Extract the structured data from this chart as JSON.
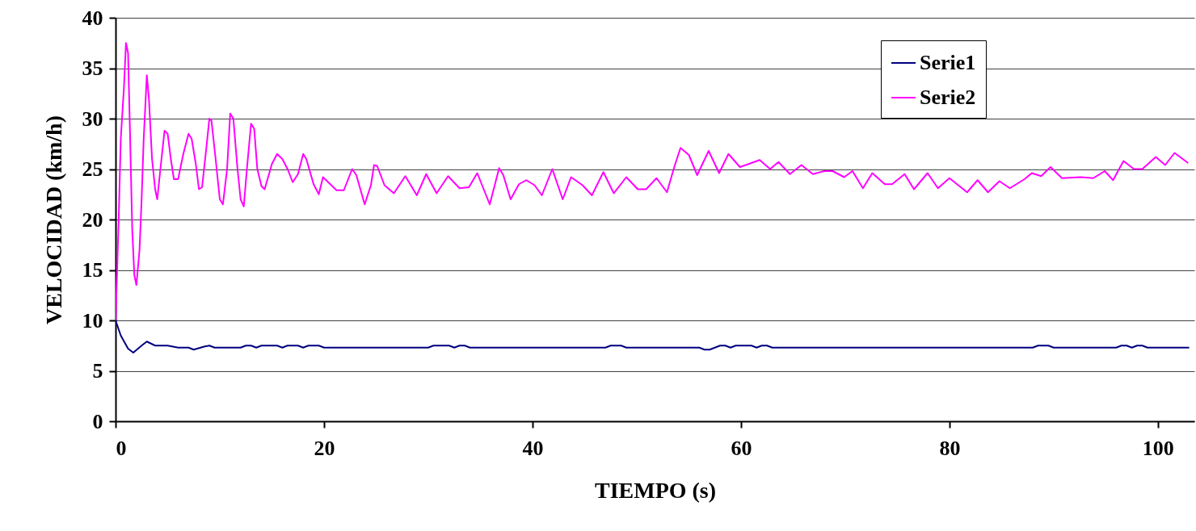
{
  "chart_data": {
    "type": "line",
    "xlabel": "TIEMPO (s)",
    "ylabel": "VELOCIDAD (km/h)",
    "xlim": [
      0,
      103.5
    ],
    "xticks": [
      0,
      20,
      40,
      60,
      80,
      100
    ],
    "ylim": [
      0,
      40
    ],
    "yticks": [
      0,
      5,
      10,
      15,
      20,
      25,
      30,
      35,
      40
    ],
    "grid": "y",
    "legend": "top right",
    "series": [
      {
        "name": "Serie1",
        "color": "#000080",
        "x": [
          0,
          0.5,
          1.2,
          1.7,
          2.5,
          3.0,
          3.8,
          5,
          6,
          7,
          7.5,
          8.5,
          9,
          9.5,
          12,
          12.5,
          13,
          13.5,
          14,
          14.5,
          15.5,
          16,
          16.5,
          17.5,
          18,
          18.5,
          19,
          19.5,
          20,
          30,
          30.5,
          32,
          32.5,
          33,
          33.5,
          34,
          47,
          47.5,
          48.5,
          49,
          56,
          56.5,
          57,
          57.5,
          58,
          58.5,
          59,
          59.5,
          61,
          61.5,
          62,
          62.5,
          63,
          88,
          88.5,
          89.5,
          90,
          96,
          96.5,
          97,
          97.5,
          98,
          98.5,
          99,
          103
        ],
        "values": [
          10,
          8.5,
          7.2,
          6.8,
          7.5,
          7.9,
          7.5,
          7.5,
          7.3,
          7.3,
          7.1,
          7.4,
          7.5,
          7.3,
          7.3,
          7.5,
          7.5,
          7.3,
          7.5,
          7.5,
          7.5,
          7.3,
          7.5,
          7.5,
          7.3,
          7.5,
          7.5,
          7.5,
          7.3,
          7.3,
          7.5,
          7.5,
          7.3,
          7.5,
          7.5,
          7.3,
          7.3,
          7.5,
          7.5,
          7.3,
          7.3,
          7.1,
          7.1,
          7.3,
          7.5,
          7.5,
          7.3,
          7.5,
          7.5,
          7.3,
          7.5,
          7.5,
          7.3,
          7.3,
          7.5,
          7.5,
          7.3,
          7.3,
          7.5,
          7.5,
          7.3,
          7.5,
          7.5,
          7.3,
          7.3
        ]
      },
      {
        "name": "Serie2",
        "color": "#ff00ff",
        "x": [
          0,
          0.3,
          0.5,
          0.8,
          1.0,
          1.2,
          1.4,
          1.6,
          1.8,
          2.0,
          2.3,
          2.5,
          2.7,
          3.0,
          3.2,
          3.5,
          3.8,
          4.0,
          4.3,
          4.7,
          5.0,
          5.3,
          5.6,
          6.0,
          6.5,
          7.0,
          7.3,
          7.7,
          8.0,
          8.3,
          8.7,
          9.0,
          9.2,
          9.6,
          10.0,
          10.3,
          10.7,
          11.0,
          11.3,
          11.7,
          12.0,
          12.3,
          12.6,
          13.0,
          13.3,
          13.6,
          14.0,
          14.3,
          15.0,
          15.5,
          16.0,
          16.5,
          17.0,
          17.5,
          18.0,
          18.3,
          19.0,
          19.5,
          19.9,
          21.2,
          21.9,
          22.7,
          23.1,
          23.9,
          24.5,
          24.8,
          25.1,
          25.8,
          26.7,
          27.8,
          28.9,
          29.8,
          30.8,
          31.9,
          33.0,
          33.9,
          34.7,
          35.9,
          36.8,
          37.2,
          37.9,
          38.7,
          39.4,
          40.2,
          40.9,
          41.9,
          42.9,
          43.7,
          44.8,
          45.7,
          46.8,
          47.8,
          49.0,
          50.1,
          50.9,
          51.9,
          52.9,
          53.6,
          54.2,
          55.0,
          55.8,
          56.9,
          57.9,
          58.8,
          59.9,
          61.0,
          61.8,
          62.8,
          63.6,
          64.7,
          65.8,
          66.9,
          68.0,
          68.8,
          69.9,
          70.7,
          71.7,
          72.6,
          73.8,
          74.5,
          75.7,
          76.6,
          77.9,
          78.9,
          80.0,
          81.7,
          82.7,
          83.7,
          84.8,
          85.8,
          87.2,
          87.9,
          88.8,
          89.7,
          90.8,
          92.6,
          93.8,
          94.9,
          95.7,
          96.7,
          97.7,
          98.5,
          99.8,
          100.7,
          101.6,
          102.9
        ],
        "values": [
          10,
          20,
          28,
          33,
          37.5,
          36.5,
          28,
          19,
          14.5,
          13.5,
          17,
          22,
          28,
          34.3,
          32,
          26,
          23,
          22,
          25,
          28.8,
          28.5,
          26,
          24,
          24,
          26.5,
          28.5,
          28,
          25.5,
          23,
          23.2,
          27,
          30,
          29.8,
          26,
          22,
          21.5,
          25,
          30.5,
          30,
          25,
          22,
          21.3,
          25,
          29.5,
          29,
          25,
          23.3,
          23,
          25.5,
          26.5,
          26,
          25,
          23.7,
          24.5,
          26.5,
          26,
          23.5,
          22.5,
          24.2,
          22.9,
          22.9,
          25.0,
          24.4,
          21.5,
          23.4,
          25.4,
          25.3,
          23.4,
          22.6,
          24.3,
          22.4,
          24.5,
          22.6,
          24.3,
          23.1,
          23.2,
          24.6,
          21.5,
          25.1,
          24.4,
          22.0,
          23.5,
          23.9,
          23.4,
          22.4,
          25.0,
          22.0,
          24.2,
          23.4,
          22.4,
          24.7,
          22.6,
          24.2,
          23.0,
          23.0,
          24.1,
          22.7,
          25.2,
          27.1,
          26.4,
          24.4,
          26.8,
          24.6,
          26.5,
          25.2,
          25.6,
          25.9,
          25.0,
          25.7,
          24.5,
          25.4,
          24.5,
          24.8,
          24.8,
          24.2,
          24.8,
          23.1,
          24.6,
          23.5,
          23.5,
          24.5,
          23.0,
          24.6,
          23.1,
          24.1,
          22.7,
          23.9,
          22.7,
          23.8,
          23.1,
          24.0,
          24.6,
          24.3,
          25.2,
          24.1,
          24.2,
          24.1,
          24.8,
          23.9,
          25.8,
          25.0,
          25.0,
          26.2,
          25.4,
          26.6,
          25.6
        ]
      }
    ]
  }
}
